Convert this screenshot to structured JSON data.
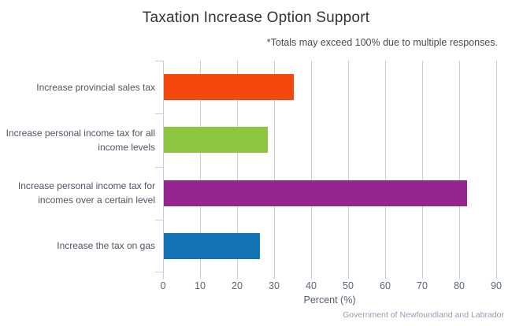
{
  "title": "Taxation Increase Option Support",
  "subtitle": "*Totals may exceed 100% due to multiple responses.",
  "credits": "Government of Newfoundland and Labrador",
  "chart_data": {
    "type": "bar",
    "orientation": "horizontal",
    "title": "Taxation Increase Option Support",
    "subtitle": "*Totals may exceed 100% due to multiple responses.",
    "categories": [
      "Increase provincial sales tax",
      "Increase personal income tax for all income levels",
      "Increase personal income tax for incomes over a certain level",
      "Increase the tax on gas"
    ],
    "values": [
      35,
      28,
      82,
      26
    ],
    "bar_colors": [
      "#f4490b",
      "#8cc63e",
      "#93278f",
      "#1274b5"
    ],
    "xlabel": "Percent (%)",
    "ylabel": "",
    "x_ticks": [
      0,
      10,
      20,
      30,
      40,
      50,
      60,
      70,
      80,
      90
    ],
    "xlim": [
      0,
      90
    ],
    "grid": true,
    "legend": false,
    "annotations": [
      "*Totals may exceed 100% due to multiple responses."
    ]
  },
  "colors": {
    "gridline": "#cccccc",
    "value_tick": "#c6c6c6",
    "category_axis": "#c0d0e0",
    "title_text": "#333333",
    "subtitle_text": "#4a4a4a",
    "category_text": "#4d5663",
    "tick_text": "#5a6672",
    "xlabel_text": "#525f6b",
    "credits_text": "#8fa0b3",
    "background": "#ffffff"
  }
}
